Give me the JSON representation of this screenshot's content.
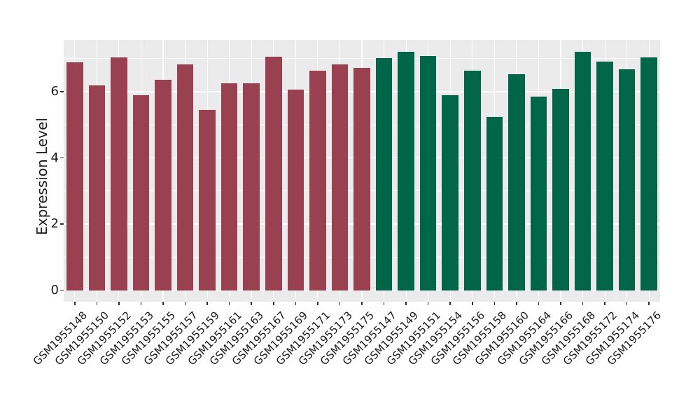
{
  "chart_data": {
    "type": "bar",
    "title": "",
    "xlabel": "",
    "ylabel": "Expression Level",
    "ylim": [
      -0.35,
      7.57
    ],
    "yticks_major": [
      0,
      2,
      4,
      6
    ],
    "yticks_minor": [
      1,
      3,
      5,
      7
    ],
    "grid": "white major+minor horizontal lines and vertical category lines on gray panel",
    "legend_position": "none",
    "bars": [
      {
        "label": "GSM1955148",
        "value": 6.88,
        "group": "maroon"
      },
      {
        "label": "GSM1955150",
        "value": 6.2,
        "group": "maroon"
      },
      {
        "label": "GSM1955152",
        "value": 7.04,
        "group": "maroon"
      },
      {
        "label": "GSM1955153",
        "value": 5.89,
        "group": "maroon"
      },
      {
        "label": "GSM1955155",
        "value": 6.36,
        "group": "maroon"
      },
      {
        "label": "GSM1955157",
        "value": 6.83,
        "group": "maroon"
      },
      {
        "label": "GSM1955159",
        "value": 5.44,
        "group": "maroon"
      },
      {
        "label": "GSM1955161",
        "value": 6.25,
        "group": "maroon"
      },
      {
        "label": "GSM1955163",
        "value": 6.25,
        "group": "maroon"
      },
      {
        "label": "GSM1955167",
        "value": 7.06,
        "group": "maroon"
      },
      {
        "label": "GSM1955169",
        "value": 6.07,
        "group": "maroon"
      },
      {
        "label": "GSM1955171",
        "value": 6.64,
        "group": "maroon"
      },
      {
        "label": "GSM1955173",
        "value": 6.82,
        "group": "maroon"
      },
      {
        "label": "GSM1955175",
        "value": 6.73,
        "group": "maroon"
      },
      {
        "label": "GSM1955147",
        "value": 7.01,
        "group": "green"
      },
      {
        "label": "GSM1955149",
        "value": 7.21,
        "group": "green"
      },
      {
        "label": "GSM1955151",
        "value": 7.09,
        "group": "green"
      },
      {
        "label": "GSM1955154",
        "value": 5.89,
        "group": "green"
      },
      {
        "label": "GSM1955156",
        "value": 6.64,
        "group": "green"
      },
      {
        "label": "GSM1955158",
        "value": 5.24,
        "group": "green"
      },
      {
        "label": "GSM1955160",
        "value": 6.53,
        "group": "green"
      },
      {
        "label": "GSM1955164",
        "value": 5.86,
        "group": "green"
      },
      {
        "label": "GSM1955166",
        "value": 6.08,
        "group": "green"
      },
      {
        "label": "GSM1955168",
        "value": 7.21,
        "group": "green"
      },
      {
        "label": "GSM1955172",
        "value": 6.92,
        "group": "green"
      },
      {
        "label": "GSM1955174",
        "value": 6.67,
        "group": "green"
      },
      {
        "label": "GSM1955176",
        "value": 7.04,
        "group": "green"
      }
    ],
    "colors": {
      "maroon": "#994150",
      "green": "#016648",
      "panel_bg": "#EBEBEB",
      "gridline": "#FFFFFF",
      "tick": "#333333",
      "text": "#1A1A1A"
    }
  }
}
